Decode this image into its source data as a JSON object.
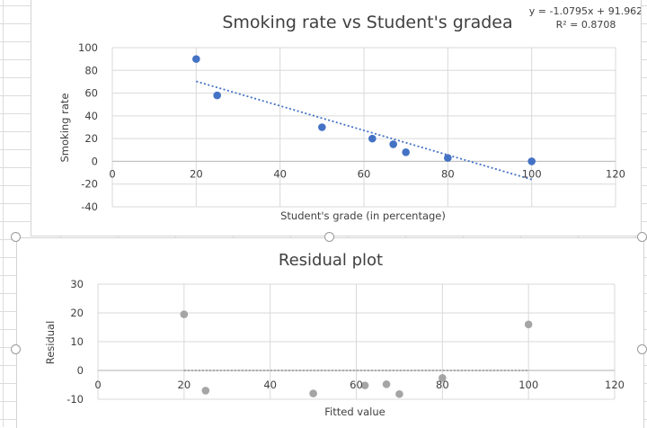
{
  "colors": {
    "scatter_point": "#4472c4",
    "trendline": "#4472c4",
    "residual_point": "#a5a5a5",
    "zero_line": "#7f7f7f",
    "gridline": "#d9d9d9",
    "text": "#404040"
  },
  "chart_data": [
    {
      "type": "scatter",
      "title": "Smoking rate vs Student's gradea",
      "xlabel": "Student's grade (in percentage)",
      "ylabel": "Smoking rate",
      "xlim": [
        0,
        120
      ],
      "ylim": [
        -40,
        100
      ],
      "x_ticks": [
        "0",
        "20",
        "40",
        "60",
        "80",
        "100",
        "120"
      ],
      "y_ticks": [
        "-40",
        "-20",
        "0",
        "20",
        "40",
        "60",
        "80",
        "100"
      ],
      "grid": true,
      "points": [
        {
          "x": 20,
          "y": 90
        },
        {
          "x": 25,
          "y": 58
        },
        {
          "x": 50,
          "y": 30
        },
        {
          "x": 62,
          "y": 20
        },
        {
          "x": 67,
          "y": 15
        },
        {
          "x": 70,
          "y": 8
        },
        {
          "x": 80,
          "y": 3
        },
        {
          "x": 100,
          "y": 0
        }
      ],
      "trendline": {
        "type": "linear",
        "slope": -1.0795,
        "intercept": 91.962,
        "x_range": [
          20,
          100
        ],
        "equation_label": "y = -1.0795x + 91.962",
        "r2_label": "R² = 0.8708"
      }
    },
    {
      "type": "scatter",
      "title": "Residual plot",
      "xlabel": "Fitted value",
      "ylabel": "Residual",
      "xlim": [
        0,
        120
      ],
      "ylim": [
        -10,
        30
      ],
      "x_ticks": [
        "0",
        "20",
        "40",
        "60",
        "80",
        "100",
        "120"
      ],
      "y_ticks": [
        "-10",
        "0",
        "10",
        "20",
        "30"
      ],
      "grid": true,
      "points": [
        {
          "x": 20,
          "y": 19.5
        },
        {
          "x": 25,
          "y": -7
        },
        {
          "x": 50,
          "y": -8
        },
        {
          "x": 62,
          "y": -5.2
        },
        {
          "x": 67,
          "y": -4.8
        },
        {
          "x": 70,
          "y": -8.2
        },
        {
          "x": 80,
          "y": -2.6
        },
        {
          "x": 100,
          "y": 16
        }
      ],
      "zero_line": {
        "y": 0,
        "x_range": [
          20,
          100
        ]
      }
    }
  ]
}
